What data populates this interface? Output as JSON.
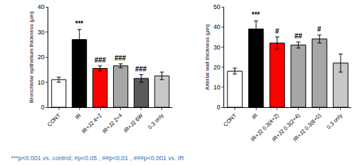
{
  "chart_data": [
    {
      "type": "bar",
      "y_label": "Bronchiolar epithelium thickness (μm)",
      "categories": [
        "CONT",
        "IR",
        "IR+J2 4+2",
        "IR+J2 2+4",
        "IR+J2 6W",
        "0.3 only"
      ],
      "values": [
        11,
        27,
        15.5,
        16.5,
        11.5,
        12.5
      ],
      "errors": [
        1,
        4,
        1,
        0.8,
        1.5,
        1.5
      ],
      "colors": [
        "#ffffff",
        "#000000",
        "#ff0000",
        "#a6a6a6",
        "#595959",
        "#c8c8c8"
      ],
      "ylim": [
        0,
        40
      ],
      "yticks": [
        0,
        10,
        20,
        30,
        40
      ],
      "grid": false,
      "annotations": [
        {
          "category": "IR",
          "text": "***"
        },
        {
          "category": "IR+J2 4+2",
          "text": "###"
        },
        {
          "category": "IR+J2 2+4",
          "text": "###"
        },
        {
          "category": "IR+J2 6W",
          "text": "###"
        }
      ]
    },
    {
      "type": "bar",
      "y_label": "Arterial wall thickness (μm)",
      "categories": [
        "CONT",
        "IR",
        "IR+J2 0.3(4+2)",
        "IR+J2 0.3(2+4)",
        "IR+J2 0.3(6+0)",
        "0.3 only"
      ],
      "values": [
        18,
        39,
        32,
        31,
        34,
        22
      ],
      "errors": [
        1.5,
        4,
        3,
        1.5,
        2,
        4.5
      ],
      "colors": [
        "#ffffff",
        "#000000",
        "#ff0000",
        "#a6a6a6",
        "#a6a6a6",
        "#c8c8c8"
      ],
      "ylim": [
        0,
        50
      ],
      "yticks": [
        0,
        10,
        20,
        30,
        40,
        50
      ],
      "grid": false,
      "annotations": [
        {
          "category": "IR",
          "text": "***"
        },
        {
          "category": "IR+J2 0.3(4+2)",
          "text": "#"
        },
        {
          "category": "IR+J2 0.3(2+4)",
          "text": "##"
        },
        {
          "category": "IR+J2 0.3(6+0)",
          "text": "#"
        }
      ]
    }
  ],
  "footnote": "***p<0.001 vs. control; #p<0.05 , ##p<0.01 , ###p<0.001 vs. IR"
}
